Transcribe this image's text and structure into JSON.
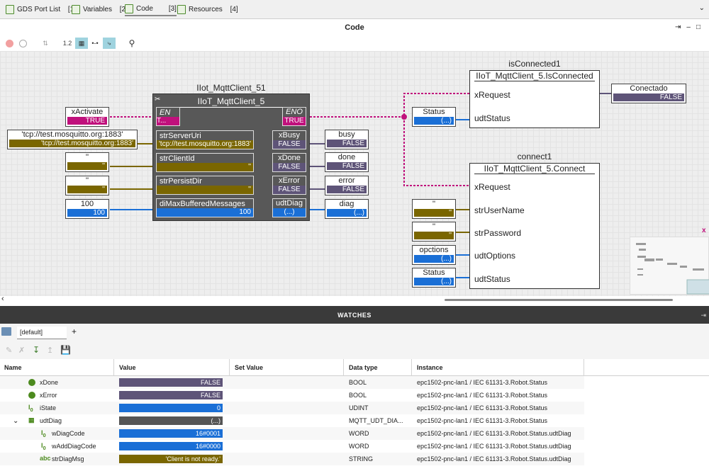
{
  "tabs": [
    {
      "label": "GDS Port List",
      "count": "[1]"
    },
    {
      "label": "Variables",
      "count": "[2]"
    },
    {
      "label": "Code",
      "count": "[3]"
    },
    {
      "label": "Resources",
      "count": "[4]"
    }
  ],
  "editor": {
    "title": "Code",
    "zoom_label": "1.2"
  },
  "diagram": {
    "fb_instance": "IIot_MqttClient_51",
    "fb_type": "IIoT_MqttClient_5",
    "en": "EN",
    "en_val": "T...",
    "eno": "ENO",
    "eno_val": "TRUE",
    "inputs": [
      {
        "name": "strServerUri",
        "value": "'tcp://test.mosquitto.org:1883'"
      },
      {
        "name": "strClientId",
        "value": "''"
      },
      {
        "name": "strPersistDir",
        "value": "''"
      },
      {
        "name": "diMaxBufferedMessages",
        "value": "100"
      }
    ],
    "outputs": [
      {
        "name": "xBusy",
        "value": "FALSE"
      },
      {
        "name": "xDone",
        "value": "FALSE"
      },
      {
        "name": "xError",
        "value": "FALSE"
      },
      {
        "name": "udtDiag",
        "value": "(...)"
      }
    ],
    "left_vars": [
      {
        "name": "xActivate",
        "value": "TRUE"
      },
      {
        "name": "'tcp://test.mosquitto.org:1883'",
        "value": "'tcp://test.mosquitto.org:1883'"
      },
      {
        "name": "''",
        "value": "''"
      },
      {
        "name": "''",
        "value": "''"
      },
      {
        "name": "100",
        "value": "100"
      }
    ],
    "right_vars": [
      {
        "name": "busy",
        "value": "FALSE"
      },
      {
        "name": "done",
        "value": "FALSE"
      },
      {
        "name": "error",
        "value": "FALSE"
      },
      {
        "name": "diag",
        "value": "(...)"
      }
    ],
    "status_var": {
      "name": "Status",
      "value": "(...)"
    },
    "isconnected": {
      "instance": "isConnected1",
      "type": "IIoT_MqttClient_5.IsConnected",
      "pins": [
        "xRequest",
        "udtStatus"
      ]
    },
    "conectado": {
      "name": "Conectado",
      "value": "FALSE"
    },
    "connect": {
      "instance": "connect1",
      "type": "IIoT_MqttClient_5.Connect",
      "pins": [
        "xRequest",
        "strUserName",
        "strPassword",
        "udtOptions",
        "udtStatus"
      ]
    },
    "connect_vars": [
      {
        "name": "''",
        "value": "''"
      },
      {
        "name": "''",
        "value": "''"
      },
      {
        "name": "opctions",
        "value": "(...)"
      },
      {
        "name": "Status",
        "value": "(...)"
      }
    ]
  },
  "watches": {
    "title": "WATCHES",
    "tab": "[default]",
    "add": "+",
    "columns": [
      "Name",
      "Value",
      "Set Value",
      "Data type",
      "Instance"
    ],
    "rows": [
      {
        "icon": "bool",
        "name": "xDone",
        "value": "FALSE",
        "color": "#5e5478",
        "type": "BOOL",
        "instance": "epc1502-pnc-lan1 / IEC 61131-3.Robot.Status"
      },
      {
        "icon": "bool",
        "name": "xError",
        "value": "FALSE",
        "color": "#5e5478",
        "type": "BOOL",
        "instance": "epc1502-pnc-lan1 / IEC 61131-3.Robot.Status"
      },
      {
        "icon": "int",
        "name": "iState",
        "value": "0",
        "color": "#1a6fd6",
        "type": "UDINT",
        "instance": "epc1502-pnc-lan1 / IEC 61131-3.Robot.Status"
      },
      {
        "icon": "struct",
        "name": "udtDiag",
        "value": "(...)",
        "color": "#555555",
        "type": "MQTT_UDT_DIA...",
        "instance": "epc1502-pnc-lan1 / IEC 61131-3.Robot.Status"
      },
      {
        "icon": "int",
        "name": "wDiagCode",
        "value": "16#0001",
        "color": "#1a6fd6",
        "type": "WORD",
        "instance": "epc1502-pnc-lan1 / IEC 61131-3.Robot.Status.udtDiag"
      },
      {
        "icon": "int",
        "name": "wAddDiagCode",
        "value": "16#0000",
        "color": "#1a6fd6",
        "type": "WORD",
        "instance": "epc1502-pnc-lan1 / IEC 61131-3.Robot.Status.udtDiag"
      },
      {
        "icon": "abc",
        "name": "strDiagMsg",
        "value": "'Client is not ready.'",
        "color": "#7a6600",
        "type": "STRING",
        "instance": "epc1502-pnc-lan1 / IEC 61131-3.Robot.Status.udtDiag"
      }
    ]
  }
}
